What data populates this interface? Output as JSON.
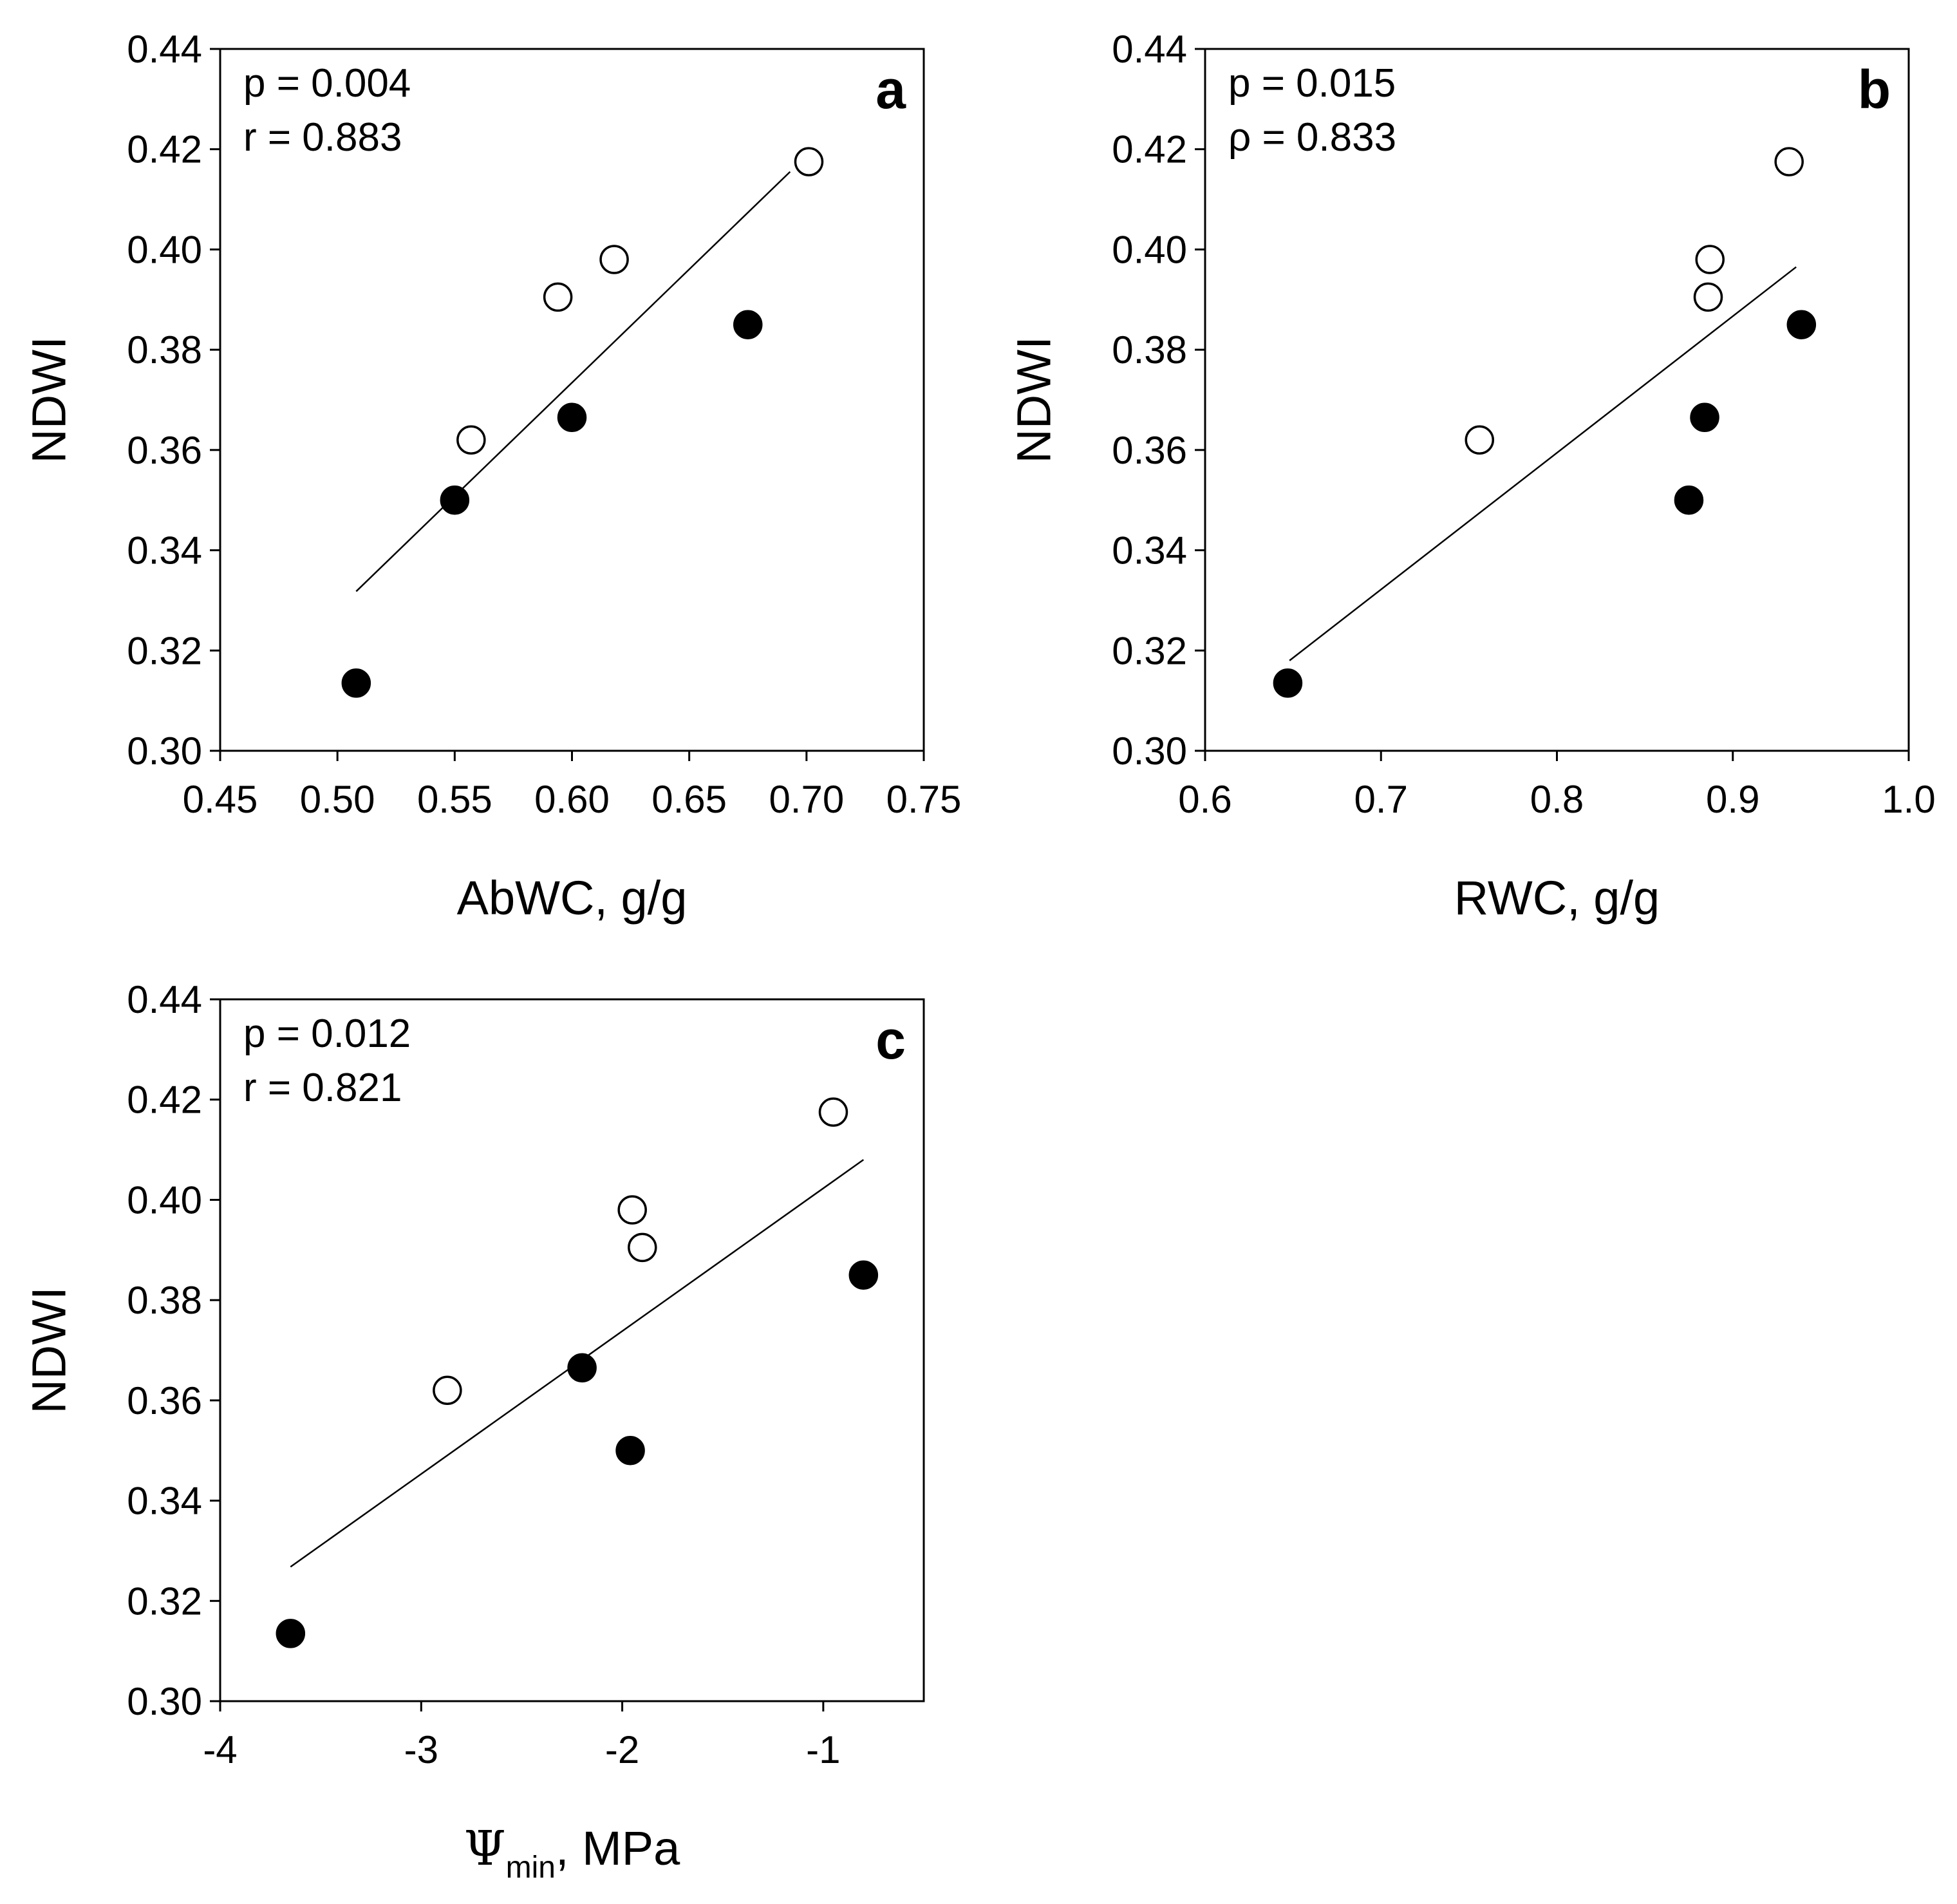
{
  "figure": {
    "palette": {
      "filled": "#000000",
      "open": "#ffffff",
      "axis": "#000000"
    }
  },
  "chart_data": [
    {
      "id": "a",
      "type": "scatter",
      "panel_label": "a",
      "stats": [
        "p = 0.004",
        "r = 0.883"
      ],
      "xlabel": "AbWC, g/g",
      "ylabel": "NDWI",
      "xlim": [
        0.45,
        0.75
      ],
      "ylim": [
        0.3,
        0.44
      ],
      "xticks": [
        0.45,
        0.5,
        0.55,
        0.6,
        0.65,
        0.7,
        0.75
      ],
      "xtick_labels": [
        "0.45",
        "0.50",
        "0.55",
        "0.60",
        "0.65",
        "0.70",
        "0.75"
      ],
      "yticks": [
        0.3,
        0.32,
        0.34,
        0.36,
        0.38,
        0.4,
        0.42,
        0.44
      ],
      "ytick_labels": [
        "0.30",
        "0.32",
        "0.34",
        "0.36",
        "0.38",
        "0.40",
        "0.42",
        "0.44"
      ],
      "series": [
        {
          "name": "filled",
          "marker": "filled-circle",
          "points": [
            [
              0.508,
              0.3135
            ],
            [
              0.55,
              0.35
            ],
            [
              0.6,
              0.3665
            ],
            [
              0.675,
              0.385
            ]
          ]
        },
        {
          "name": "open",
          "marker": "open-circle",
          "points": [
            [
              0.557,
              0.362
            ],
            [
              0.594,
              0.3905
            ],
            [
              0.618,
              0.398
            ],
            [
              0.701,
              0.4175
            ]
          ]
        }
      ],
      "regression": {
        "x": [
          0.508,
          0.693
        ],
        "y": [
          0.3318,
          0.4155
        ]
      }
    },
    {
      "id": "b",
      "type": "scatter",
      "panel_label": "b",
      "stats": [
        "p = 0.015",
        "ρ = 0.833"
      ],
      "xlabel": "RWC, g/g",
      "ylabel": "NDWI",
      "xlim": [
        0.6,
        1.0
      ],
      "ylim": [
        0.3,
        0.44
      ],
      "xticks": [
        0.6,
        0.7,
        0.8,
        0.9,
        1.0
      ],
      "xtick_labels": [
        "0.6",
        "0.7",
        "0.8",
        "0.9",
        "1.0"
      ],
      "yticks": [
        0.3,
        0.32,
        0.34,
        0.36,
        0.38,
        0.4,
        0.42,
        0.44
      ],
      "ytick_labels": [
        "0.30",
        "0.32",
        "0.34",
        "0.36",
        "0.38",
        "0.40",
        "0.42",
        "0.44"
      ],
      "series": [
        {
          "name": "filled",
          "marker": "filled-circle",
          "points": [
            [
              0.647,
              0.3135
            ],
            [
              0.875,
              0.35
            ],
            [
              0.884,
              0.3665
            ],
            [
              0.939,
              0.385
            ]
          ]
        },
        {
          "name": "open",
          "marker": "open-circle",
          "points": [
            [
              0.756,
              0.362
            ],
            [
              0.886,
              0.3905
            ],
            [
              0.887,
              0.398
            ],
            [
              0.932,
              0.4175
            ]
          ]
        }
      ],
      "regression": {
        "x": [
          0.648,
          0.936
        ],
        "y": [
          0.318,
          0.3965
        ]
      }
    },
    {
      "id": "c",
      "type": "scatter",
      "panel_label": "c",
      "stats": [
        "p = 0.012",
        "r = 0.821"
      ],
      "xlabel": "MPa",
      "xlabel_symbol": "Ψ",
      "xlabel_subscript": "min",
      "ylabel": "NDWI",
      "xlim": [
        -4,
        -0.5
      ],
      "ylim": [
        0.3,
        0.44
      ],
      "xticks": [
        -4,
        -3,
        -2,
        -1
      ],
      "xtick_labels": [
        "-4",
        "-3",
        "-2",
        "-1"
      ],
      "yticks": [
        0.3,
        0.32,
        0.34,
        0.36,
        0.38,
        0.4,
        0.42,
        0.44
      ],
      "ytick_labels": [
        "0.30",
        "0.32",
        "0.34",
        "0.36",
        "0.38",
        "0.40",
        "0.42",
        "0.44"
      ],
      "series": [
        {
          "name": "filled",
          "marker": "filled-circle",
          "points": [
            [
              -3.65,
              0.3135
            ],
            [
              -1.96,
              0.35
            ],
            [
              -2.2,
              0.3665
            ],
            [
              -0.8,
              0.385
            ]
          ]
        },
        {
          "name": "open",
          "marker": "open-circle",
          "points": [
            [
              -2.87,
              0.362
            ],
            [
              -1.9,
              0.3905
            ],
            [
              -1.95,
              0.398
            ],
            [
              -0.95,
              0.4175
            ]
          ]
        }
      ],
      "regression": {
        "x": [
          -3.65,
          -0.8
        ],
        "y": [
          0.3268,
          0.408
        ]
      }
    }
  ]
}
